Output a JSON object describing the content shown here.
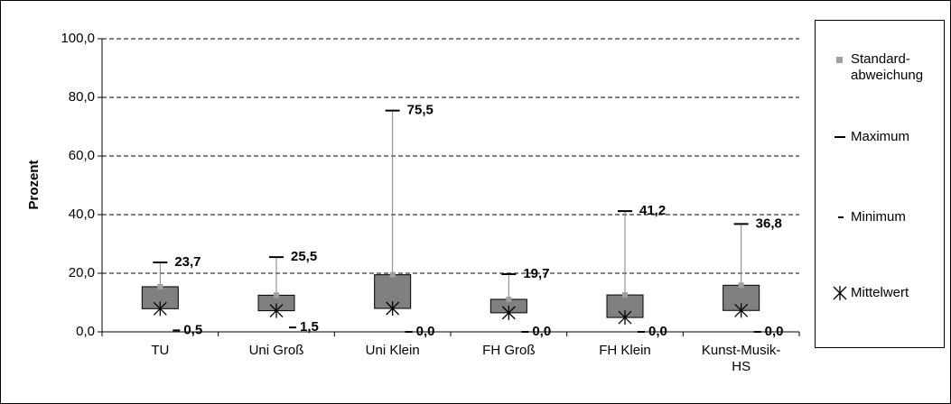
{
  "chart_data": {
    "type": "box",
    "y_label": "Prozent",
    "categories": [
      "TU",
      "Uni Groß",
      "Uni Klein",
      "FH Groß",
      "FH Klein",
      "Kunst-Musik-HS"
    ],
    "series": [
      {
        "name": "Standard-abweichung",
        "color": "#808080",
        "values": [
          7.5,
          5.3,
          11.5,
          4.6,
          7.7,
          8.6
        ]
      },
      {
        "name": "Maximum",
        "color": "#000000",
        "values": [
          23.7,
          25.5,
          75.5,
          19.7,
          41.2,
          36.8
        ],
        "value_labels": [
          "23,7",
          "25,5",
          "75,5",
          "19,7",
          "41,2",
          "36,8"
        ]
      },
      {
        "name": "Minimum",
        "color": "#000000",
        "values": [
          0.5,
          1.5,
          0.0,
          0.0,
          0.0,
          0.0
        ],
        "value_labels": [
          "0,5",
          "1,5",
          "0,0",
          "0,0",
          "0,0",
          "0,0"
        ]
      },
      {
        "name": "Mittelwert",
        "color": "#000000",
        "values": [
          7.9,
          7.2,
          8.0,
          6.5,
          4.9,
          7.3
        ]
      }
    ],
    "ylim": [
      0,
      100
    ],
    "yticks": [
      {
        "value": 0,
        "label": "0,0"
      },
      {
        "value": 20,
        "label": "20,0"
      },
      {
        "value": 40,
        "label": "40,0"
      },
      {
        "value": 60,
        "label": "60,0"
      },
      {
        "value": 80,
        "label": "80,0"
      },
      {
        "value": 100,
        "label": "100,0"
      }
    ],
    "grid": true
  }
}
